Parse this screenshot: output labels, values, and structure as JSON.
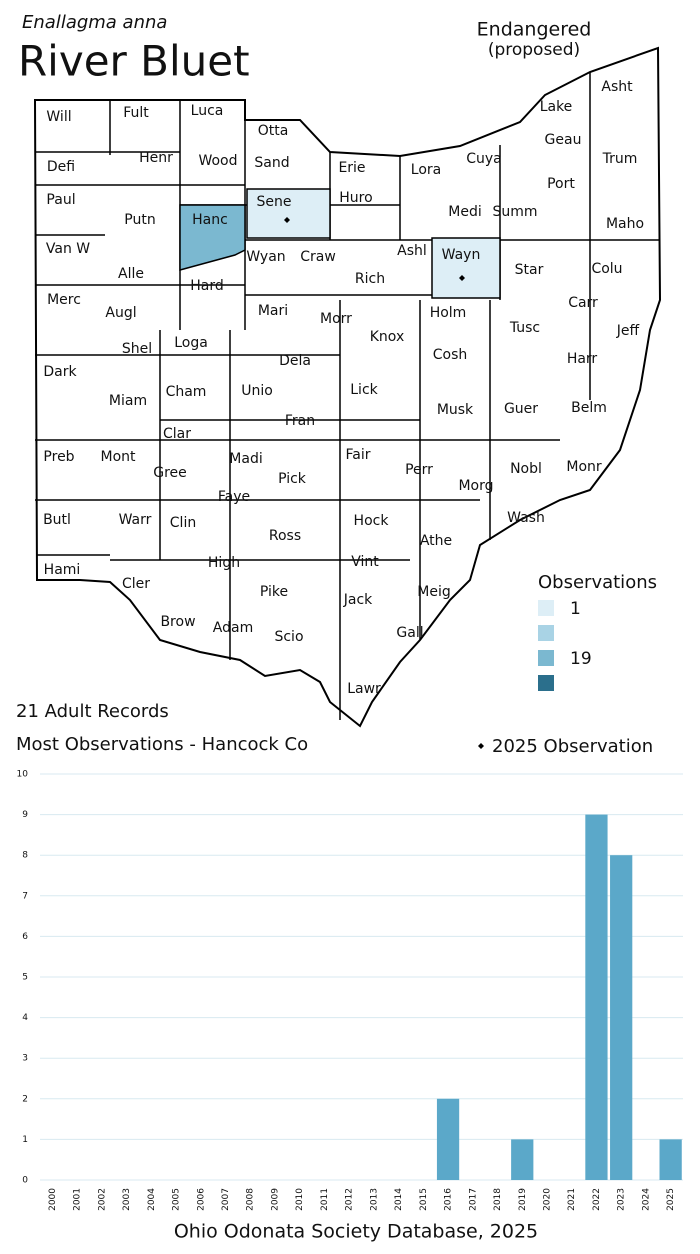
{
  "header": {
    "species": "Enallagma anna",
    "title": "River Bluet",
    "status": "Endangered",
    "status_note": "(proposed)"
  },
  "map": {
    "counties": [
      {
        "name": "Will"
      },
      {
        "name": "Fult"
      },
      {
        "name": "Luca"
      },
      {
        "name": "Otta"
      },
      {
        "name": "Defi"
      },
      {
        "name": "Henr"
      },
      {
        "name": "Wood"
      },
      {
        "name": "Sand"
      },
      {
        "name": "Erie"
      },
      {
        "name": "Lora"
      },
      {
        "name": "Cuya"
      },
      {
        "name": "Lake"
      },
      {
        "name": "Geau"
      },
      {
        "name": "Asht"
      },
      {
        "name": "Trum"
      },
      {
        "name": "Port"
      },
      {
        "name": "Paul"
      },
      {
        "name": "Putn"
      },
      {
        "name": "Hanc",
        "shade": "#7bb8d0"
      },
      {
        "name": "Sene",
        "shade": "#ddeef6",
        "mark_2025": true
      },
      {
        "name": "Huro"
      },
      {
        "name": "Medi"
      },
      {
        "name": "Summ"
      },
      {
        "name": "Maho"
      },
      {
        "name": "Van W"
      },
      {
        "name": "Alle"
      },
      {
        "name": "Wyan"
      },
      {
        "name": "Craw"
      },
      {
        "name": "Ashl"
      },
      {
        "name": "Wayn",
        "shade": "#ddeef6",
        "mark_2025": true
      },
      {
        "name": "Star"
      },
      {
        "name": "Colu"
      },
      {
        "name": "Hard"
      },
      {
        "name": "Rich"
      },
      {
        "name": "Merc"
      },
      {
        "name": "Augl"
      },
      {
        "name": "Mari"
      },
      {
        "name": "Morr"
      },
      {
        "name": "Holm"
      },
      {
        "name": "Carr"
      },
      {
        "name": "Tusc"
      },
      {
        "name": "Jeff"
      },
      {
        "name": "Shel"
      },
      {
        "name": "Loga"
      },
      {
        "name": "Knox"
      },
      {
        "name": "Cosh"
      },
      {
        "name": "Harr"
      },
      {
        "name": "Dark"
      },
      {
        "name": "Dela"
      },
      {
        "name": "Miam"
      },
      {
        "name": "Cham"
      },
      {
        "name": "Unio"
      },
      {
        "name": "Lick"
      },
      {
        "name": "Musk"
      },
      {
        "name": "Guer"
      },
      {
        "name": "Belm"
      },
      {
        "name": "Clar"
      },
      {
        "name": "Fran"
      },
      {
        "name": "Preb"
      },
      {
        "name": "Mont"
      },
      {
        "name": "Madi"
      },
      {
        "name": "Fair"
      },
      {
        "name": "Perr"
      },
      {
        "name": "Nobl"
      },
      {
        "name": "Monr"
      },
      {
        "name": "Gree"
      },
      {
        "name": "Pick"
      },
      {
        "name": "Morg"
      },
      {
        "name": "Faye"
      },
      {
        "name": "Butl"
      },
      {
        "name": "Warr"
      },
      {
        "name": "Clin"
      },
      {
        "name": "Hock"
      },
      {
        "name": "Wash"
      },
      {
        "name": "Ross"
      },
      {
        "name": "Athe"
      },
      {
        "name": "High"
      },
      {
        "name": "Vint"
      },
      {
        "name": "Hami"
      },
      {
        "name": "Cler"
      },
      {
        "name": "Pike"
      },
      {
        "name": "Meig"
      },
      {
        "name": "Jack"
      },
      {
        "name": "Brow"
      },
      {
        "name": "Adam"
      },
      {
        "name": "Gall"
      },
      {
        "name": "Scio"
      },
      {
        "name": "Lawr"
      }
    ]
  },
  "legend": {
    "title": "Observations",
    "items": [
      {
        "label": "1",
        "color": "#ddeef6"
      },
      {
        "label": null,
        "color": "#a9d3e5"
      },
      {
        "label": "19",
        "color": "#7bb8d0"
      },
      {
        "label": null,
        "color": "#2b6f8c"
      }
    ]
  },
  "notes": {
    "records": "21 Adult Records",
    "most": "Most Observations - Hancock Co",
    "marker_legend": "2025 Observation"
  },
  "source": "Ohio Odonata Society Database, 2025",
  "chart_data": {
    "type": "bar",
    "color": "#5ba8c9",
    "grid": true,
    "categories": [
      "2000",
      "2001",
      "2002",
      "2003",
      "2004",
      "2005",
      "2006",
      "2007",
      "2008",
      "2009",
      "2010",
      "2011",
      "2012",
      "2013",
      "2014",
      "2015",
      "2016",
      "2017",
      "2018",
      "2019",
      "2020",
      "2021",
      "2022",
      "2023",
      "2024",
      "2025"
    ],
    "values": [
      0,
      0,
      0,
      0,
      0,
      0,
      0,
      0,
      0,
      0,
      0,
      0,
      0,
      0,
      0,
      0,
      2,
      0,
      0,
      1,
      0,
      0,
      9,
      8,
      0,
      1
    ],
    "ylim": [
      0,
      10
    ],
    "yticks": [
      0,
      1,
      2,
      3,
      4,
      5,
      6,
      7,
      8,
      9,
      10
    ]
  }
}
